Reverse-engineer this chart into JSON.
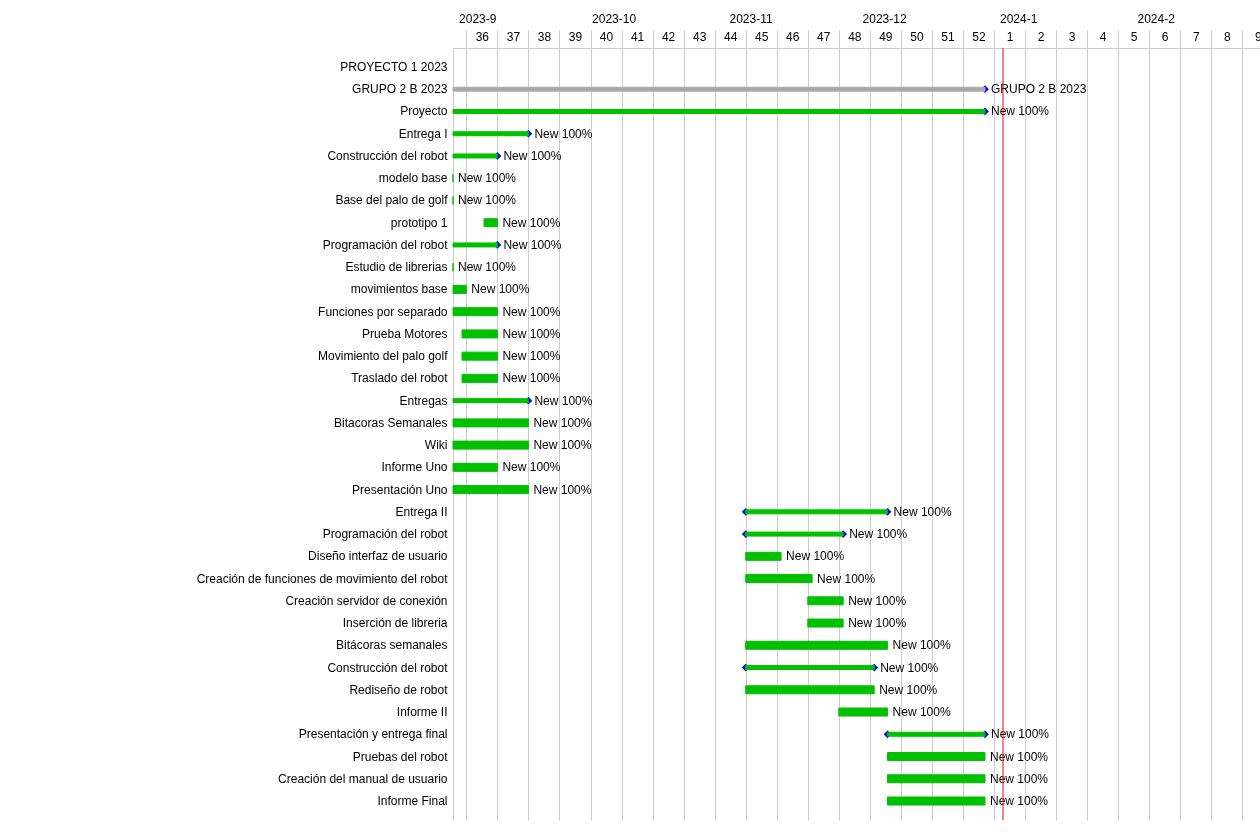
{
  "chart_data": {
    "type": "bar",
    "orientation": "horizontal",
    "categories": [
      "PROYECTO 1 2023",
      "GRUPO 2 B 2023",
      "Proyecto",
      "Entrega I",
      "Construcción del robot",
      "modelo base",
      "Base del palo de golf",
      "prototipo 1",
      "Programación del robot",
      "Estudio de librerias",
      "movimientos base",
      "Funciones por separado",
      "Prueba Motores",
      "Movimiento del palo golf",
      "Traslado del robot",
      "Entregas",
      "Bitacoras Semanales",
      "Wiki",
      "Informe Uno",
      "Presentación Uno",
      "Entrega II",
      "Programación del robot",
      "Diseño interfaz de usuario",
      "Creación de funciones de movimiento del robot",
      "Creación servidor de conexión",
      "Inserción de libreria",
      "Bitácoras semanales",
      "Construcción del robot",
      "Rediseño de robot",
      "Informe II",
      "Presentación y entrega final",
      "Pruebas del robot",
      "Creación del manual de usuario",
      "Informe Final"
    ],
    "series": [
      {
        "color": "#aaaaaa",
        "marker": "diamond",
        "values": [
          null,
          17.14,
          null,
          null,
          null,
          null,
          null,
          null,
          null,
          null,
          null,
          null,
          null,
          null,
          null,
          null,
          null,
          null,
          null,
          null,
          null,
          null,
          null,
          null,
          null,
          null,
          null,
          null,
          null,
          null,
          null,
          null,
          null,
          null
        ],
        "base": [
          null,
          35.07,
          null,
          null,
          null,
          null,
          null,
          null,
          null,
          null,
          null,
          null,
          null,
          null,
          null,
          null,
          null,
          null,
          null,
          null,
          null,
          null,
          null,
          null,
          null,
          null,
          null,
          null,
          null,
          null,
          null,
          null,
          null,
          null
        ],
        "value_labels": [
          null,
          "GRUPO 2 B 2023",
          null,
          null,
          null,
          null,
          null,
          null,
          null,
          null,
          null,
          null,
          null,
          null,
          null,
          null,
          null,
          null,
          null,
          null,
          null,
          null,
          null,
          null,
          null,
          null,
          null,
          null,
          null,
          null,
          null,
          null,
          null,
          null
        ]
      },
      {
        "color": "#00c000",
        "marker": "diamond",
        "values": [
          null,
          null,
          17.14,
          2.43,
          1.43,
          null,
          null,
          null,
          1.43,
          null,
          null,
          null,
          null,
          null,
          null,
          2.43,
          null,
          null,
          null,
          null,
          4.57,
          3.14,
          null,
          null,
          null,
          null,
          null,
          4.14,
          null,
          null,
          3.14,
          null,
          null,
          null
        ],
        "base": [
          null,
          null,
          35.07,
          35.07,
          35.07,
          null,
          null,
          null,
          35.07,
          null,
          null,
          null,
          null,
          null,
          null,
          35.07,
          null,
          null,
          null,
          null,
          44.5,
          44.5,
          null,
          null,
          null,
          null,
          null,
          44.5,
          null,
          null,
          49.07,
          null,
          null,
          null
        ],
        "value_labels": [
          null,
          null,
          "New 100%",
          "New 100%",
          "New 100%",
          null,
          null,
          null,
          "New 100%",
          null,
          null,
          null,
          null,
          null,
          null,
          "New 100%",
          null,
          null,
          null,
          null,
          "New 100%",
          "New 100%",
          null,
          null,
          null,
          null,
          null,
          "New 100%",
          null,
          null,
          "New 100%",
          null,
          null,
          null
        ]
      },
      {
        "color": "#00c000",
        "values": [
          null,
          null,
          null,
          null,
          null,
          0,
          0,
          0.43,
          null,
          0,
          0.43,
          1.43,
          1.14,
          1.14,
          1.14,
          null,
          2.43,
          2.43,
          1.43,
          2.43,
          null,
          null,
          1.14,
          2.14,
          1.14,
          1.14,
          4.57,
          null,
          4.14,
          1.57,
          null,
          3.14,
          3.14,
          3.14
        ],
        "base": [
          null,
          null,
          null,
          null,
          null,
          35.07,
          35.07,
          36.07,
          null,
          35.07,
          35.07,
          35.07,
          35.36,
          35.36,
          35.36,
          null,
          35.07,
          35.07,
          35.07,
          35.07,
          null,
          null,
          44.5,
          44.5,
          46.5,
          46.5,
          44.5,
          null,
          44.5,
          47.5,
          null,
          49.07,
          49.07,
          49.07
        ],
        "value_labels": [
          null,
          null,
          null,
          null,
          null,
          "New 100%",
          "New 100%",
          "New 100%",
          null,
          "New 100%",
          "New 100%",
          "New 100%",
          "New 100%",
          "New 100%",
          "New 100%",
          null,
          "New 100%",
          "New 100%",
          "New 100%",
          "New 100%",
          null,
          null,
          "New 100%",
          "New 100%",
          "New 100%",
          "New 100%",
          "New 100%",
          null,
          "New 100%",
          "New 100%",
          null,
          "New 100%",
          "New 100%",
          "New 100%"
        ]
      }
    ],
    "xlim": [
      35.07,
      61.07
    ],
    "xticks": [
      {
        "value": 35.5,
        "label": null
      },
      36,
      {
        "value": 36.5,
        "label": null
      },
      37,
      {
        "value": 37.5,
        "label": null
      },
      38,
      {
        "value": 38.5,
        "label": null
      },
      39,
      {
        "value": 39.5,
        "label": null
      },
      40,
      {
        "value": 40.5,
        "label": null
      },
      41,
      {
        "value": 41.5,
        "label": null
      },
      42,
      {
        "value": 42.5,
        "label": null
      },
      43,
      {
        "value": 43.5,
        "label": null
      },
      44,
      {
        "value": 44.5,
        "label": null
      },
      45,
      {
        "value": 45.5,
        "label": null
      },
      46,
      {
        "value": 46.5,
        "label": null
      },
      47,
      {
        "value": 47.5,
        "label": null
      },
      48,
      {
        "value": 48.5,
        "label": null
      },
      49,
      {
        "value": 49.5,
        "label": null
      },
      50,
      {
        "value": 50.5,
        "label": null
      },
      51,
      {
        "value": 51.5,
        "label": null
      },
      52,
      {
        "value": 52.5,
        "label": null
      }
    ],
    "x2lim": [
      -16.93,
      9.07
    ],
    "x2ticks": [
      1,
      {
        "value": 1.5,
        "label": null
      },
      2,
      {
        "value": 2.5,
        "label": null
      },
      3,
      {
        "value": 3.5,
        "label": null
      },
      4,
      {
        "value": 4.5,
        "label": null
      },
      5,
      {
        "value": 5.5,
        "label": null
      },
      6,
      {
        "value": 6.5,
        "label": null
      },
      7,
      {
        "value": 7.5,
        "label": null
      },
      8,
      {
        "value": 8.5,
        "label": null
      },
      9
    ],
    "annotations": [
      "2023-9",
      "2023-10",
      "2023-11",
      "2023-12",
      "2024-1",
      "2024-2"
    ],
    "grid": "x",
    "ref_lines": [
      {
        "axis": "x",
        "value": 52.79,
        "color": "#ff0000"
      }
    ]
  }
}
